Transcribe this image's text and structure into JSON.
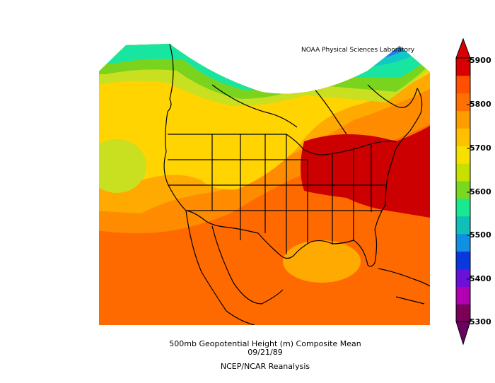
{
  "credit": "NOAA Physical Sciences Laboratory",
  "caption": {
    "line1": "500mb Geopotential Height (m) Composite Mean",
    "line2": "09/21/89",
    "line3": "NCEP/NCAR Reanalysis"
  },
  "colorbar": {
    "labels": [
      "5900",
      "5800",
      "5700",
      "5600",
      "5500",
      "5400",
      "5300"
    ],
    "colors": [
      "#7a0058",
      "#b000b0",
      "#6a10d8",
      "#0a38e0",
      "#1090e0",
      "#10c0b8",
      "#18e890",
      "#7ad820",
      "#c8e000",
      "#f6e000",
      "#ffc000",
      "#ff9c00",
      "#ff7000",
      "#ff5000",
      "#d80000"
    ]
  },
  "palette": {
    "dark_red": "#cc0000",
    "red_orange": "#ff6a00",
    "orange": "#ff8c00",
    "light_orange": "#ffaa00",
    "yellow": "#ffd400",
    "yellow_green": "#c8e020",
    "green": "#7ad41e",
    "teal": "#18e6a0",
    "cyan": "#10c8c8",
    "blue": "#2080e8",
    "deep_blue": "#2030d8",
    "violet": "#7020d0",
    "magenta": "#c000c0",
    "dark_purple": "#500048"
  }
}
